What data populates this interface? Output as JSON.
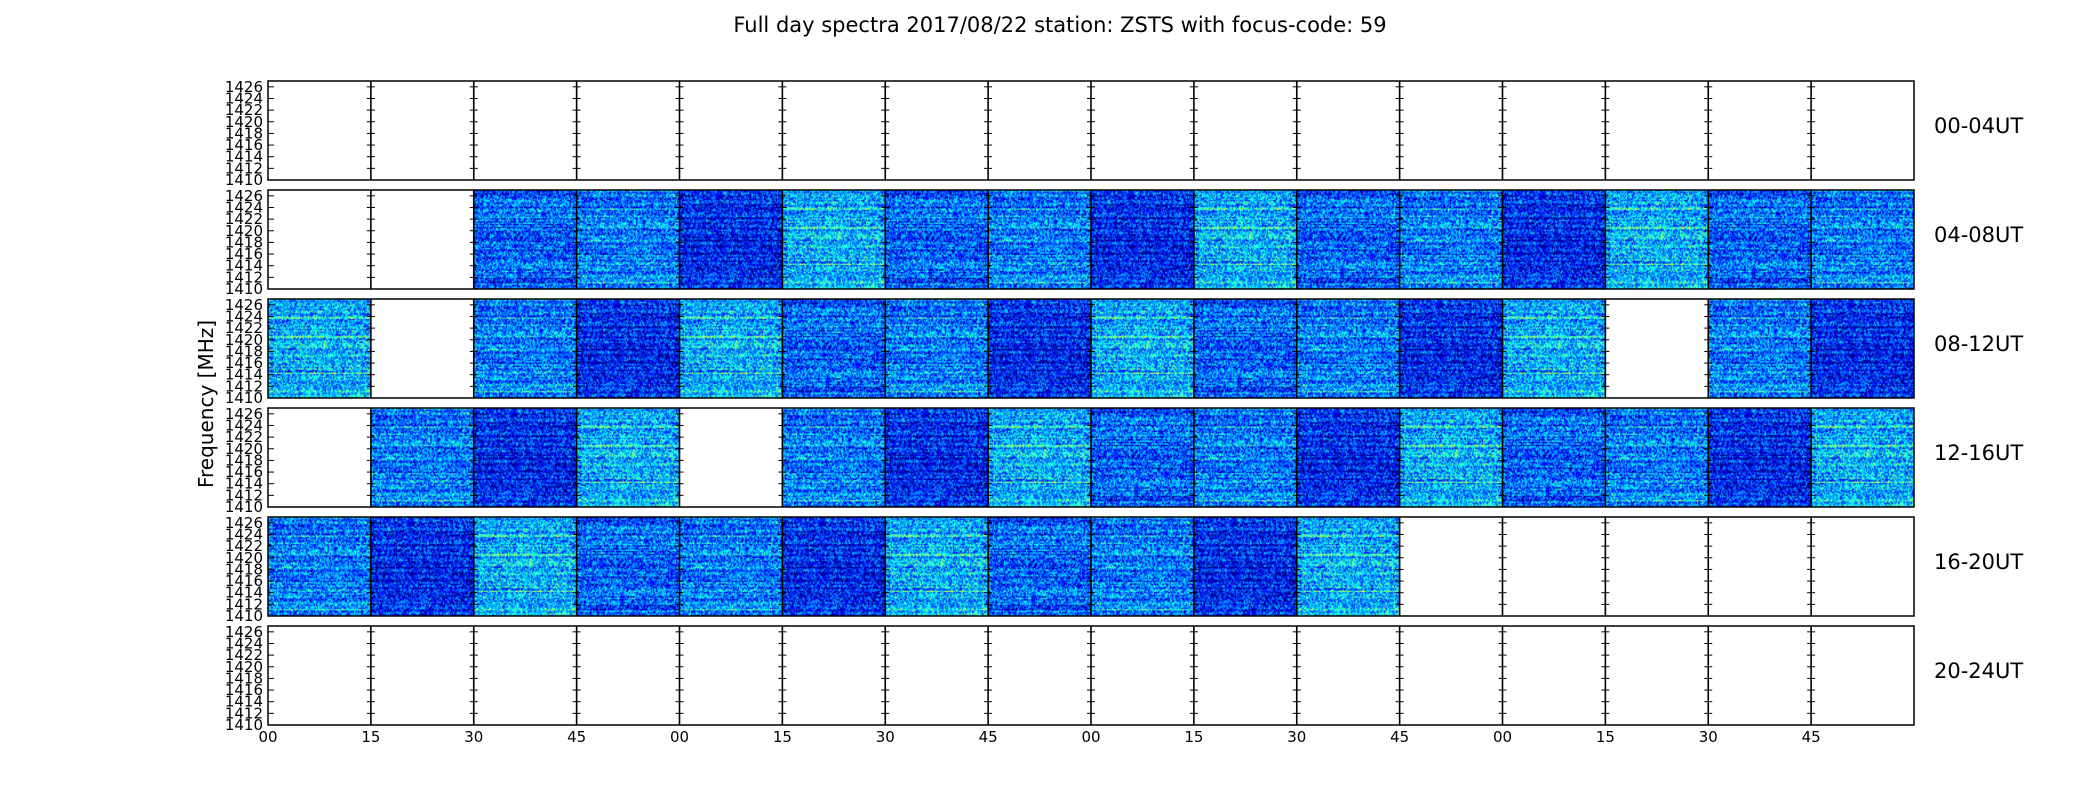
{
  "chart_data": {
    "type": "heatmap",
    "title": "Full day spectra 2017/08/22 station: ZSTS with focus-code: 59",
    "xlabel": "",
    "ylabel": "Frequency [MHz]",
    "y_ticks": [
      "1426",
      "1424",
      "1422",
      "1420",
      "1418",
      "1416",
      "1414",
      "1412",
      "1410"
    ],
    "ylim": [
      1410,
      1427
    ],
    "x_ticks": [
      "00",
      "15",
      "30",
      "45",
      "00",
      "15",
      "30",
      "45",
      "00",
      "15",
      "30",
      "45",
      "00",
      "15",
      "30",
      "45"
    ],
    "colormap": [
      "#00007f",
      "#0000ff",
      "#007fff",
      "#00ffff",
      "#7fff7f",
      "#ffff00",
      "#ff7f00"
    ],
    "minutes_per_panel": 15,
    "grid": false,
    "rows": [
      {
        "label": "00-04UT",
        "panels": [
          0,
          0,
          0,
          0,
          0,
          0,
          0,
          0,
          0,
          0,
          0,
          0,
          0,
          0,
          0,
          0
        ]
      },
      {
        "label": "04-08UT",
        "panels": [
          0,
          0,
          1,
          1,
          1,
          1,
          1,
          1,
          1,
          1,
          1,
          1,
          1,
          1,
          1,
          1
        ]
      },
      {
        "label": "08-12UT",
        "panels": [
          1,
          0,
          1,
          1,
          1,
          1,
          1,
          1,
          1,
          1,
          1,
          1,
          1,
          0,
          1,
          1
        ]
      },
      {
        "label": "12-16UT",
        "panels": [
          0,
          1,
          1,
          1,
          0,
          1,
          1,
          1,
          1,
          1,
          1,
          1,
          1,
          1,
          1,
          1
        ]
      },
      {
        "label": "16-20UT",
        "panels": [
          1,
          1,
          1,
          1,
          1,
          1,
          1,
          1,
          1,
          1,
          1,
          0,
          0,
          0,
          0,
          0
        ]
      },
      {
        "label": "20-24UT",
        "panels": [
          0,
          0,
          0,
          0,
          0,
          0,
          0,
          0,
          0,
          0,
          0,
          0,
          0,
          0,
          0,
          0
        ]
      }
    ]
  }
}
